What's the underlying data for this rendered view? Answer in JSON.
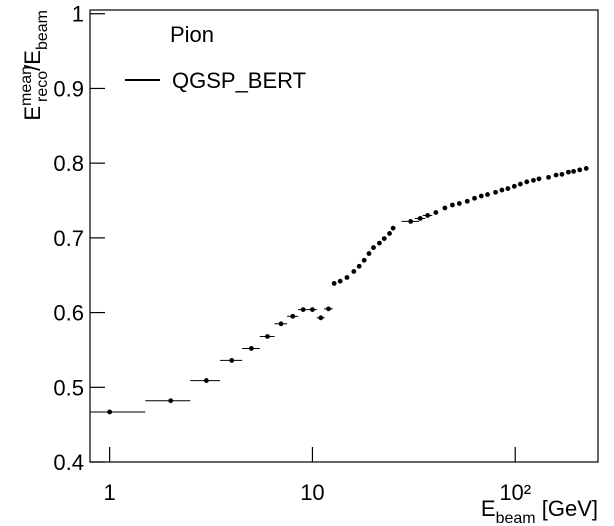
{
  "chart_data": {
    "type": "scatter",
    "xlabel_parts": [
      {
        "text": "E"
      },
      {
        "text": "beam",
        "sub": true
      },
      {
        "text": " [GeV]"
      }
    ],
    "ylabel_parts": [
      {
        "text": "E"
      },
      {
        "text": "mean",
        "sup": true
      },
      {
        "text": "reco",
        "sub": true
      },
      {
        "text": "/E"
      },
      {
        "text": "beam",
        "sub": true
      }
    ],
    "legend_title": "Pion",
    "log_x": true,
    "xlim": [
      0.8,
      256
    ],
    "ylim": [
      0.4,
      1.005
    ],
    "xticks": [
      1,
      10,
      {
        "value": 100,
        "label": "10²"
      }
    ],
    "yticks": [
      0.4,
      0.5,
      0.6,
      0.7,
      0.8,
      0.9,
      1
    ],
    "series": [
      {
        "name": "QGSP_BERT",
        "color": "#000000",
        "x": [
          1,
          2,
          3,
          4,
          5,
          6,
          7,
          8,
          9,
          10,
          11,
          12,
          12.8,
          13.7,
          14.8,
          16,
          17,
          18,
          19,
          20,
          21.4,
          22.6,
          24,
          25,
          30.5,
          34,
          37,
          40.6,
          45,
          49,
          53,
          58,
          63,
          68,
          73,
          80,
          86,
          92,
          99,
          106,
          114,
          123,
          131,
          146,
          159,
          170,
          183,
          194,
          208,
          224
        ],
        "values": [
          0.467,
          0.482,
          0.509,
          0.536,
          0.552,
          0.568,
          0.585,
          0.595,
          0.604,
          0.604,
          0.593,
          0.605,
          0.639,
          0.642,
          0.647,
          0.655,
          0.662,
          0.67,
          0.679,
          0.687,
          0.693,
          0.699,
          0.706,
          0.713,
          0.722,
          0.726,
          0.73,
          0.734,
          0.74,
          0.744,
          0.746,
          0.749,
          0.753,
          0.756,
          0.758,
          0.761,
          0.764,
          0.766,
          0.769,
          0.772,
          0.775,
          0.777,
          0.779,
          0.781,
          0.784,
          0.785,
          0.788,
          0.789,
          0.791,
          0.793
        ],
        "xerr": [
          0.5,
          0.5,
          0.5,
          0.5,
          0.5,
          0.5,
          0.5,
          0.5,
          0.5,
          0.5,
          0.5,
          0.6,
          0,
          0,
          0,
          0,
          0,
          0,
          0,
          0,
          0,
          0,
          0,
          0,
          3,
          2,
          2,
          0,
          0,
          0,
          0,
          0,
          0,
          0,
          0,
          0,
          0,
          0,
          0,
          0,
          0,
          0,
          0,
          0,
          0,
          0,
          0,
          0,
          0,
          0
        ]
      }
    ]
  }
}
